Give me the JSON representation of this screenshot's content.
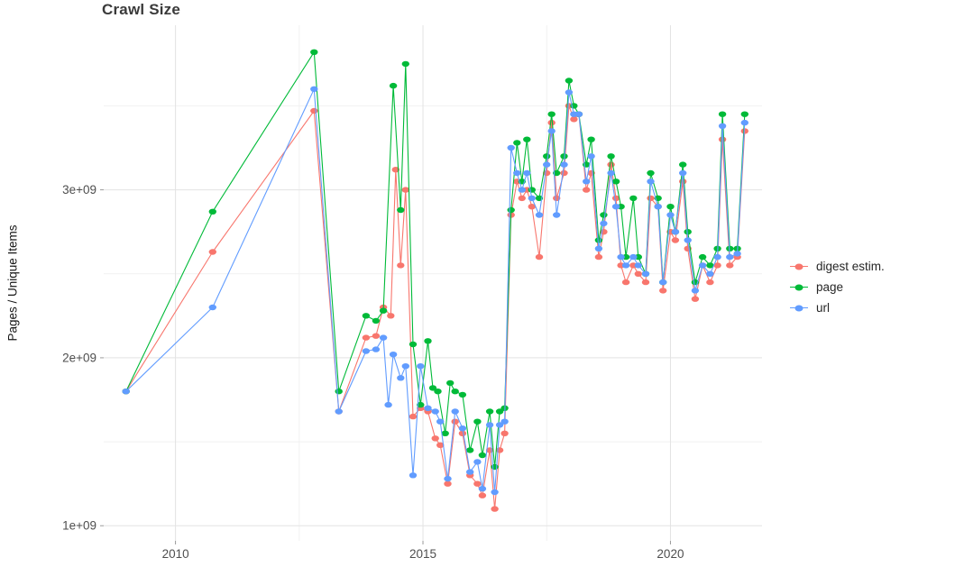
{
  "chart_data": {
    "type": "line",
    "title": "Crawl Size",
    "xlabel": "",
    "ylabel": "Pages / Unique Items",
    "y_unit_multiplier": 1000000000,
    "xlim": [
      2008.55,
      2021.85
    ],
    "ylim_billions": [
      0.91,
      3.98
    ],
    "grid": true,
    "legend_position": "right",
    "x_ticks": [
      {
        "value": 2010,
        "label": "2010"
      },
      {
        "value": 2015,
        "label": "2015"
      },
      {
        "value": 2020,
        "label": "2020"
      }
    ],
    "y_ticks": [
      {
        "value": 1,
        "label": "1e+09"
      },
      {
        "value": 2,
        "label": "2e+09"
      },
      {
        "value": 3,
        "label": "3e+09"
      }
    ],
    "x_minor_gridlines": [
      2012.5,
      2017.5
    ],
    "y_minor_gridlines": [
      1.5,
      2.5,
      3.5
    ],
    "series": [
      {
        "name": "digest estim.",
        "color": "#F8766D",
        "points": [
          [
            2009.0,
            1.8
          ],
          [
            2010.75,
            2.63
          ],
          [
            2012.8,
            3.47
          ],
          [
            2013.3,
            1.68
          ],
          [
            2013.85,
            2.12
          ],
          [
            2014.05,
            2.13
          ],
          [
            2014.2,
            2.3
          ],
          [
            2014.35,
            2.25
          ],
          [
            2014.45,
            3.12
          ],
          [
            2014.55,
            2.55
          ],
          [
            2014.65,
            3.0
          ],
          [
            2014.8,
            1.65
          ],
          [
            2014.95,
            1.7
          ],
          [
            2015.1,
            1.68
          ],
          [
            2015.25,
            1.52
          ],
          [
            2015.35,
            1.48
          ],
          [
            2015.5,
            1.25
          ],
          [
            2015.65,
            1.62
          ],
          [
            2015.8,
            1.55
          ],
          [
            2015.95,
            1.3
          ],
          [
            2016.1,
            1.25
          ],
          [
            2016.2,
            1.18
          ],
          [
            2016.35,
            1.45
          ],
          [
            2016.45,
            1.1
          ],
          [
            2016.55,
            1.45
          ],
          [
            2016.65,
            1.55
          ],
          [
            2016.78,
            2.85
          ],
          [
            2016.9,
            3.05
          ],
          [
            2017.0,
            2.95
          ],
          [
            2017.1,
            3.0
          ],
          [
            2017.2,
            2.9
          ],
          [
            2017.35,
            2.6
          ],
          [
            2017.5,
            3.1
          ],
          [
            2017.6,
            3.4
          ],
          [
            2017.7,
            2.95
          ],
          [
            2017.85,
            3.1
          ],
          [
            2017.95,
            3.5
          ],
          [
            2018.05,
            3.42
          ],
          [
            2018.15,
            3.45
          ],
          [
            2018.3,
            3.0
          ],
          [
            2018.4,
            3.1
          ],
          [
            2018.55,
            2.6
          ],
          [
            2018.65,
            2.75
          ],
          [
            2018.8,
            3.15
          ],
          [
            2018.9,
            2.95
          ],
          [
            2019.0,
            2.55
          ],
          [
            2019.1,
            2.45
          ],
          [
            2019.25,
            2.55
          ],
          [
            2019.35,
            2.5
          ],
          [
            2019.5,
            2.45
          ],
          [
            2019.6,
            2.95
          ],
          [
            2019.75,
            2.9
          ],
          [
            2019.85,
            2.4
          ],
          [
            2020.0,
            2.75
          ],
          [
            2020.1,
            2.7
          ],
          [
            2020.25,
            3.05
          ],
          [
            2020.35,
            2.65
          ],
          [
            2020.5,
            2.35
          ],
          [
            2020.65,
            2.55
          ],
          [
            2020.8,
            2.45
          ],
          [
            2020.95,
            2.55
          ],
          [
            2021.05,
            3.3
          ],
          [
            2021.2,
            2.55
          ],
          [
            2021.35,
            2.6
          ],
          [
            2021.5,
            3.35
          ]
        ]
      },
      {
        "name": "page",
        "color": "#00BA38",
        "points": [
          [
            2009.0,
            1.8
          ],
          [
            2010.75,
            2.87
          ],
          [
            2012.8,
            3.82
          ],
          [
            2013.3,
            1.8
          ],
          [
            2013.85,
            2.25
          ],
          [
            2014.05,
            2.22
          ],
          [
            2014.2,
            2.28
          ],
          [
            2014.4,
            3.62
          ],
          [
            2014.55,
            2.88
          ],
          [
            2014.65,
            3.75
          ],
          [
            2014.8,
            2.08
          ],
          [
            2014.95,
            1.72
          ],
          [
            2015.1,
            2.1
          ],
          [
            2015.2,
            1.82
          ],
          [
            2015.3,
            1.8
          ],
          [
            2015.45,
            1.55
          ],
          [
            2015.55,
            1.85
          ],
          [
            2015.65,
            1.8
          ],
          [
            2015.8,
            1.78
          ],
          [
            2015.95,
            1.45
          ],
          [
            2016.1,
            1.62
          ],
          [
            2016.2,
            1.42
          ],
          [
            2016.35,
            1.68
          ],
          [
            2016.45,
            1.35
          ],
          [
            2016.55,
            1.68
          ],
          [
            2016.65,
            1.7
          ],
          [
            2016.78,
            2.88
          ],
          [
            2016.9,
            3.28
          ],
          [
            2017.0,
            3.05
          ],
          [
            2017.1,
            3.3
          ],
          [
            2017.2,
            3.0
          ],
          [
            2017.35,
            2.95
          ],
          [
            2017.5,
            3.2
          ],
          [
            2017.6,
            3.45
          ],
          [
            2017.7,
            3.1
          ],
          [
            2017.85,
            3.2
          ],
          [
            2017.95,
            3.65
          ],
          [
            2018.05,
            3.5
          ],
          [
            2018.15,
            3.45
          ],
          [
            2018.3,
            3.15
          ],
          [
            2018.4,
            3.3
          ],
          [
            2018.55,
            2.7
          ],
          [
            2018.65,
            2.85
          ],
          [
            2018.8,
            3.2
          ],
          [
            2018.9,
            3.05
          ],
          [
            2019.0,
            2.9
          ],
          [
            2019.1,
            2.6
          ],
          [
            2019.25,
            2.95
          ],
          [
            2019.35,
            2.6
          ],
          [
            2019.5,
            2.5
          ],
          [
            2019.6,
            3.1
          ],
          [
            2019.75,
            2.95
          ],
          [
            2019.85,
            2.45
          ],
          [
            2020.0,
            2.9
          ],
          [
            2020.1,
            2.75
          ],
          [
            2020.25,
            3.15
          ],
          [
            2020.35,
            2.75
          ],
          [
            2020.5,
            2.45
          ],
          [
            2020.65,
            2.6
          ],
          [
            2020.8,
            2.55
          ],
          [
            2020.95,
            2.65
          ],
          [
            2021.05,
            3.45
          ],
          [
            2021.2,
            2.65
          ],
          [
            2021.35,
            2.65
          ],
          [
            2021.5,
            3.45
          ]
        ]
      },
      {
        "name": "url",
        "color": "#619CFF",
        "points": [
          [
            2009.0,
            1.8
          ],
          [
            2010.75,
            2.3
          ],
          [
            2012.8,
            3.6
          ],
          [
            2013.3,
            1.68
          ],
          [
            2013.85,
            2.04
          ],
          [
            2014.05,
            2.05
          ],
          [
            2014.2,
            2.12
          ],
          [
            2014.3,
            1.72
          ],
          [
            2014.4,
            2.02
          ],
          [
            2014.55,
            1.88
          ],
          [
            2014.65,
            1.95
          ],
          [
            2014.8,
            1.3
          ],
          [
            2014.95,
            1.95
          ],
          [
            2015.1,
            1.7
          ],
          [
            2015.25,
            1.68
          ],
          [
            2015.35,
            1.62
          ],
          [
            2015.5,
            1.28
          ],
          [
            2015.65,
            1.68
          ],
          [
            2015.8,
            1.58
          ],
          [
            2015.95,
            1.32
          ],
          [
            2016.1,
            1.38
          ],
          [
            2016.2,
            1.22
          ],
          [
            2016.35,
            1.6
          ],
          [
            2016.45,
            1.2
          ],
          [
            2016.55,
            1.6
          ],
          [
            2016.65,
            1.62
          ],
          [
            2016.78,
            3.25
          ],
          [
            2016.9,
            3.1
          ],
          [
            2017.0,
            3.0
          ],
          [
            2017.1,
            3.1
          ],
          [
            2017.2,
            2.95
          ],
          [
            2017.35,
            2.85
          ],
          [
            2017.5,
            3.15
          ],
          [
            2017.6,
            3.35
          ],
          [
            2017.7,
            2.85
          ],
          [
            2017.85,
            3.15
          ],
          [
            2017.95,
            3.58
          ],
          [
            2018.05,
            3.45
          ],
          [
            2018.15,
            3.45
          ],
          [
            2018.3,
            3.05
          ],
          [
            2018.4,
            3.2
          ],
          [
            2018.55,
            2.65
          ],
          [
            2018.65,
            2.8
          ],
          [
            2018.8,
            3.1
          ],
          [
            2018.9,
            2.9
          ],
          [
            2019.0,
            2.6
          ],
          [
            2019.1,
            2.55
          ],
          [
            2019.25,
            2.6
          ],
          [
            2019.35,
            2.55
          ],
          [
            2019.5,
            2.5
          ],
          [
            2019.6,
            3.05
          ],
          [
            2019.75,
            2.9
          ],
          [
            2019.85,
            2.45
          ],
          [
            2020.0,
            2.85
          ],
          [
            2020.1,
            2.75
          ],
          [
            2020.25,
            3.1
          ],
          [
            2020.35,
            2.7
          ],
          [
            2020.5,
            2.4
          ],
          [
            2020.65,
            2.55
          ],
          [
            2020.8,
            2.5
          ],
          [
            2020.95,
            2.6
          ],
          [
            2021.05,
            3.38
          ],
          [
            2021.2,
            2.6
          ],
          [
            2021.35,
            2.62
          ],
          [
            2021.5,
            3.4
          ]
        ]
      }
    ]
  },
  "colors": {
    "digest_estim": "#F8766D",
    "page": "#00BA38",
    "url": "#619CFF",
    "grid_major": "#e3e3e3",
    "grid_minor": "#f1f1f1",
    "axis_text": "#4e4e4e"
  }
}
